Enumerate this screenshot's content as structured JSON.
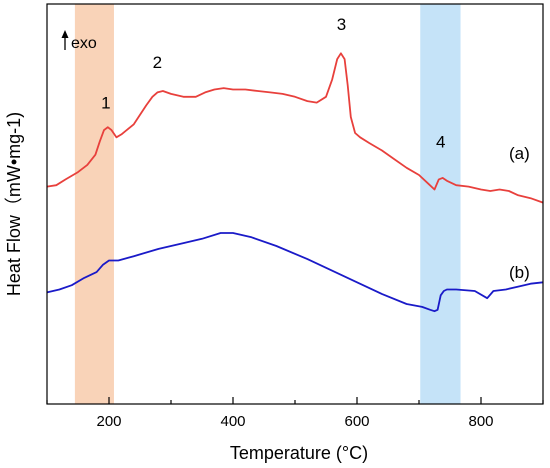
{
  "chart_data": {
    "type": "line",
    "title": "",
    "xlabel": "Temperature (°C)",
    "ylabel": "Heat Flow（mW•mg-1)",
    "xlim": [
      100,
      900
    ],
    "x_ticks": [
      200,
      400,
      600,
      800
    ],
    "x_tick_labels": [
      "200",
      "400",
      "600",
      "800"
    ],
    "y_ticks_shown": false,
    "grid": false,
    "legend": "none",
    "direction_label": "exo",
    "shaded_regions": [
      {
        "x_range": [
          145,
          208
        ],
        "color": "#f9d3b8"
      },
      {
        "x_range": [
          702,
          767
        ],
        "color": "#c5e3f8"
      }
    ],
    "peak_labels": [
      {
        "text": "1",
        "x": 195,
        "y": 4.2
      },
      {
        "text": "2",
        "x": 278,
        "y": 5.6
      },
      {
        "text": "3",
        "x": 575,
        "y": 6.9
      },
      {
        "text": "4",
        "x": 735,
        "y": 2.85
      }
    ],
    "series": [
      {
        "label": "(a)",
        "label_position": [
          800,
          2.45
        ],
        "color": "#e8403c",
        "x": [
          100,
          115,
          130,
          150,
          165,
          178,
          185,
          192,
          198,
          204,
          212,
          220,
          240,
          260,
          270,
          278,
          287,
          300,
          320,
          340,
          355,
          370,
          385,
          400,
          420,
          440,
          460,
          480,
          500,
          520,
          535,
          550,
          560,
          568,
          574,
          580,
          585,
          590,
          597,
          605,
          620,
          640,
          660,
          680,
          700,
          715,
          725,
          732,
          738,
          745,
          760,
          780,
          800,
          815,
          830,
          845,
          860,
          880,
          900
        ],
        "y": [
          1.5,
          1.55,
          1.75,
          2.0,
          2.25,
          2.6,
          3.05,
          3.45,
          3.55,
          3.45,
          3.2,
          3.3,
          3.65,
          4.3,
          4.6,
          4.75,
          4.8,
          4.7,
          4.6,
          4.6,
          4.75,
          4.85,
          4.9,
          4.85,
          4.85,
          4.8,
          4.75,
          4.7,
          4.6,
          4.45,
          4.4,
          4.6,
          5.2,
          5.9,
          6.1,
          5.9,
          5.0,
          3.9,
          3.35,
          3.2,
          3.0,
          2.75,
          2.45,
          2.15,
          1.9,
          1.6,
          1.4,
          1.75,
          1.8,
          1.7,
          1.55,
          1.5,
          1.4,
          1.35,
          1.4,
          1.35,
          1.2,
          1.1,
          0.95
        ]
      },
      {
        "label": "(b)",
        "label_position": [
          800,
          -1.65
        ],
        "color": "#1a1ac8",
        "x": [
          100,
          120,
          140,
          160,
          180,
          190,
          200,
          215,
          240,
          280,
          320,
          350,
          380,
          400,
          430,
          470,
          520,
          560,
          600,
          640,
          680,
          705,
          718,
          725,
          730,
          735,
          740,
          745,
          760,
          790,
          810,
          820,
          840,
          860,
          880,
          900
        ],
        "y": [
          -2.15,
          -2.05,
          -1.9,
          -1.65,
          -1.45,
          -1.2,
          -1.05,
          -1.05,
          -0.9,
          -0.65,
          -0.45,
          -0.3,
          -0.1,
          -0.1,
          -0.25,
          -0.55,
          -1.0,
          -1.4,
          -1.8,
          -2.2,
          -2.55,
          -2.65,
          -2.75,
          -2.8,
          -2.75,
          -2.25,
          -2.1,
          -2.05,
          -2.05,
          -2.1,
          -2.35,
          -2.1,
          -2.05,
          -1.95,
          -1.85,
          -1.8
        ]
      }
    ],
    "y_range_plot": [
      -6.0,
      7.8
    ]
  }
}
